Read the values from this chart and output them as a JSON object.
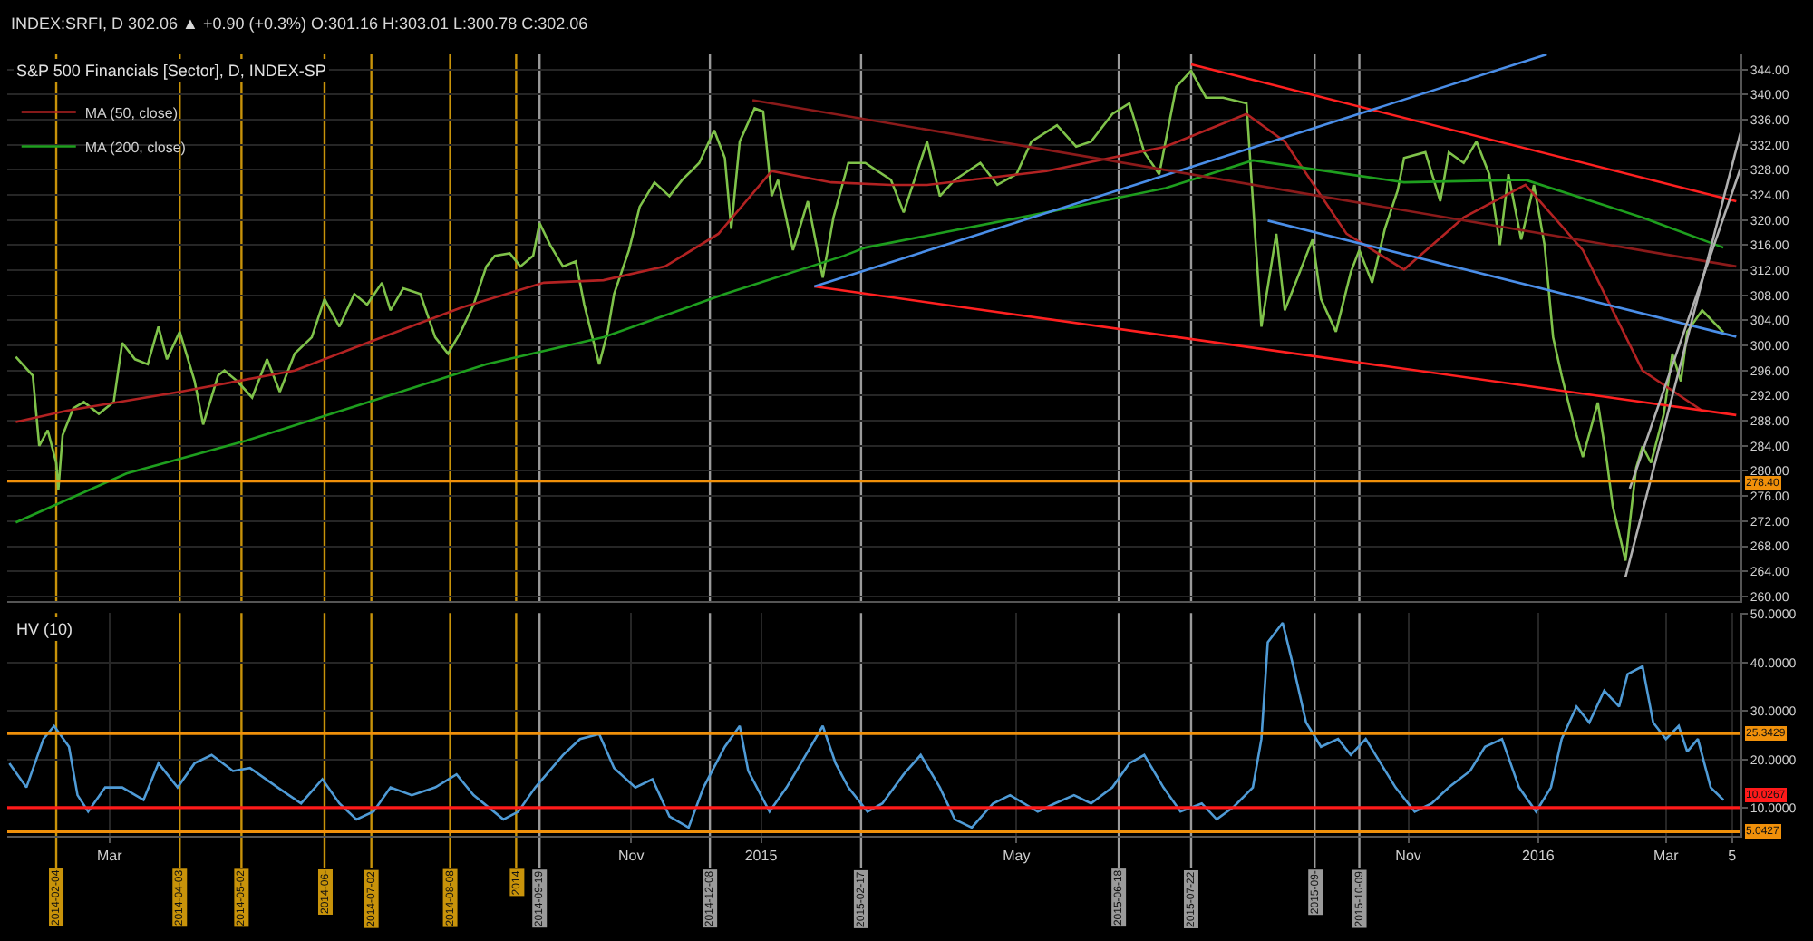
{
  "chart_data": [
    {
      "type": "line",
      "title": "S&P 500 Financials [Sector], D, INDEX-SP",
      "subtitle": "INDEX:SRFI, D 302.06 ▲ +0.90 (+0.3%) O:301.16 H:303.01 L:300.78 C:302.06",
      "xlim": [
        "2014-01-12",
        "2016-04-05"
      ],
      "ylim": [
        259.2,
        346.4
      ],
      "yticks": [
        {
          "value": 260,
          "label": "260.00"
        },
        {
          "value": 264,
          "label": "264.00"
        },
        {
          "value": 268,
          "label": "268.00"
        },
        {
          "value": 272,
          "label": "272.00"
        },
        {
          "value": 276,
          "label": "276.00"
        },
        {
          "value": 280,
          "label": "280.00"
        },
        {
          "value": 284,
          "label": "284.00"
        },
        {
          "value": 288,
          "label": "288.00"
        },
        {
          "value": 292,
          "label": "292.00"
        },
        {
          "value": 296,
          "label": "296.00"
        },
        {
          "value": 300,
          "label": "300.00"
        },
        {
          "value": 304,
          "label": "304.00"
        },
        {
          "value": 308,
          "label": "308.00"
        },
        {
          "value": 312,
          "label": "312.00"
        },
        {
          "value": 316,
          "label": "316.00"
        },
        {
          "value": 320,
          "label": "320.00"
        },
        {
          "value": 324,
          "label": "324.00"
        },
        {
          "value": 328,
          "label": "328.00"
        },
        {
          "value": 332,
          "label": "332.00"
        },
        {
          "value": 336,
          "label": "336.00"
        },
        {
          "value": 340,
          "label": "340.00"
        },
        {
          "value": 344,
          "label": "344.00"
        }
      ],
      "tick_labels": "y",
      "grid": true,
      "legend": "top left",
      "series": [
        {
          "color": "#7fc24a",
          "x": [
            "2014-01-16",
            "2014-01-24",
            "2014-01-27",
            "2014-01-31",
            "2014-02-04",
            "2014-02-05",
            "2014-02-07",
            "2014-02-12",
            "2014-02-17",
            "2014-02-24",
            "2014-03-03",
            "2014-03-07",
            "2014-03-13",
            "2014-03-19",
            "2014-03-24",
            "2014-03-28",
            "2014-04-03",
            "2014-04-10",
            "2014-04-14",
            "2014-04-21",
            "2014-04-24",
            "2014-04-30",
            "2014-05-07",
            "2014-05-14",
            "2014-05-20",
            "2014-05-27",
            "2014-06-04",
            "2014-06-10",
            "2014-06-17",
            "2014-06-24",
            "2014-06-30",
            "2014-07-07",
            "2014-07-11",
            "2014-07-17",
            "2014-07-25",
            "2014-08-01",
            "2014-08-07",
            "2014-08-13",
            "2014-08-19",
            "2014-08-25",
            "2014-08-29",
            "2014-09-05",
            "2014-09-10",
            "2014-09-16",
            "2014-09-19",
            "2014-09-24",
            "2014-09-30",
            "2014-10-06",
            "2014-10-10",
            "2014-10-17",
            "2014-10-21",
            "2014-10-24",
            "2014-10-31",
            "2014-11-05",
            "2014-11-12",
            "2014-11-19",
            "2014-11-25",
            "2014-12-03",
            "2014-12-10",
            "2014-12-15",
            "2014-12-18",
            "2014-12-22",
            "2014-12-29",
            "2015-01-02",
            "2015-01-06",
            "2015-01-09",
            "2015-01-16",
            "2015-01-23",
            "2015-01-30",
            "2015-02-04",
            "2015-02-11",
            "2015-02-19",
            "2015-03-03",
            "2015-03-09",
            "2015-03-20",
            "2015-03-26",
            "2015-04-02",
            "2015-04-14",
            "2015-04-22",
            "2015-05-01",
            "2015-05-08",
            "2015-05-20",
            "2015-05-29",
            "2015-06-05",
            "2015-06-15",
            "2015-06-23",
            "2015-06-30",
            "2015-07-07",
            "2015-07-15",
            "2015-07-22",
            "2015-07-29",
            "2015-08-06",
            "2015-08-17",
            "2015-08-21",
            "2015-08-24",
            "2015-08-31",
            "2015-09-04",
            "2015-09-10",
            "2015-09-17",
            "2015-09-21",
            "2015-09-28",
            "2015-10-05",
            "2015-10-09",
            "2015-10-15",
            "2015-10-21",
            "2015-10-27",
            "2015-10-30",
            "2015-11-09",
            "2015-11-16",
            "2015-11-20",
            "2015-11-27",
            "2015-12-03",
            "2015-12-09",
            "2015-12-14",
            "2015-12-18",
            "2015-12-24",
            "2015-12-30",
            "2016-01-04",
            "2016-01-08",
            "2016-01-12",
            "2016-01-19",
            "2016-01-22",
            "2016-01-29",
            "2016-02-02",
            "2016-02-05",
            "2016-02-11",
            "2016-02-16",
            "2016-02-19",
            "2016-02-23",
            "2016-02-29",
            "2016-03-04",
            "2016-03-08",
            "2016-03-11",
            "2016-03-18",
            "2016-03-28"
          ],
          "values": [
            298.2,
            295.2,
            284,
            286.5,
            281.3,
            277,
            285.7,
            290,
            291,
            289.1,
            291,
            300.4,
            297.8,
            297,
            303,
            297.8,
            302.2,
            294.3,
            287.4,
            295.2,
            296,
            294.3,
            291.7,
            297.8,
            292.6,
            298.7,
            301.3,
            307.4,
            303,
            308.2,
            306.5,
            310,
            305.6,
            309.1,
            308.2,
            301.3,
            298.7,
            302.2,
            306.5,
            312.6,
            314.3,
            314.7,
            312.6,
            314.3,
            319.5,
            316,
            312.6,
            313.4,
            306.5,
            297,
            302.2,
            308.2,
            315.2,
            322.1,
            326,
            323.8,
            326.4,
            329.1,
            334.3,
            329.9,
            318.6,
            332.5,
            337.8,
            337.3,
            323.8,
            326.4,
            315.2,
            323,
            310.8,
            320.4,
            329.1,
            329.1,
            326.4,
            321.2,
            332.5,
            323.8,
            326.4,
            329.1,
            325.6,
            327.3,
            332.5,
            335.1,
            331.7,
            332.5,
            336.9,
            338.6,
            330.8,
            327.3,
            341.2,
            343.8,
            339.5,
            339.5,
            338.6,
            317.8,
            303,
            317.8,
            305.6,
            310.8,
            316.9,
            307.4,
            302.2,
            311.7,
            315.2,
            310,
            318.6,
            324.7,
            329.9,
            330.8,
            323,
            330.8,
            329.1,
            332.5,
            327.3,
            316,
            327.3,
            316.9,
            325.6,
            316,
            301.3,
            295.2,
            285.7,
            282.2,
            290.9,
            282.2,
            274.4,
            265.7,
            280.5,
            283.9,
            281.3,
            289.1,
            298.7,
            294.3,
            302.2,
            305.6,
            302.1
          ]
        },
        {
          "name": "MA (50, close)",
          "color": "#b22222",
          "x": [
            "2014-01-16",
            "2014-02-09",
            "2014-04-03",
            "2014-05-27",
            "2014-06-30",
            "2014-08-13",
            "2014-09-21",
            "2014-10-19",
            "2014-11-17",
            "2014-12-12",
            "2015-01-06",
            "2015-02-03",
            "2015-03-03",
            "2015-03-20",
            "2015-05-15",
            "2015-07-10",
            "2015-08-17",
            "2015-09-04",
            "2015-10-03",
            "2015-10-30",
            "2015-11-27",
            "2015-12-26",
            "2016-01-22",
            "2016-02-19",
            "2016-03-18"
          ],
          "values": [
            287.8,
            289.6,
            292.6,
            296,
            300.4,
            306,
            310,
            310.4,
            312.6,
            317.8,
            327.8,
            326,
            325.6,
            325.6,
            327.8,
            331.7,
            336.9,
            332.5,
            317.8,
            312.1,
            320.4,
            325.6,
            315.2,
            296,
            289.6
          ]
        },
        {
          "name": "MA (200, close)",
          "color": "#1e9e1e",
          "x": [
            "2014-01-16",
            "2014-03-09",
            "2014-05-04",
            "2014-06-30",
            "2014-08-25",
            "2014-10-19",
            "2014-12-15",
            "2015-02-09",
            "2015-02-19",
            "2015-05-15",
            "2015-07-10",
            "2015-08-20",
            "2015-10-30",
            "2015-12-26",
            "2016-02-19",
            "2016-03-28"
          ],
          "values": [
            271.8,
            279.6,
            284.8,
            290.9,
            297,
            301.3,
            308.2,
            314.3,
            315.6,
            321.2,
            325.1,
            329.5,
            326,
            326.4,
            320.4,
            315.6
          ]
        },
        {
          "color": "#ff2020",
          "x": [
            "2015-07-22",
            "2016-04-03"
          ],
          "values": [
            344.8,
            323
          ]
        },
        {
          "color": "#ff2020",
          "x": [
            "2015-01-26",
            "2016-04-03"
          ],
          "values": [
            309.4,
            288.9
          ]
        },
        {
          "color": "#4a8ee8",
          "x": [
            "2015-01-26",
            "2016-01-05"
          ],
          "values": [
            309.4,
            346.4
          ]
        },
        {
          "color": "#4a8ee8",
          "x": [
            "2015-08-27",
            "2016-04-03"
          ],
          "values": [
            319.9,
            301.4
          ]
        },
        {
          "color": "#8b1a1a",
          "x": [
            "2014-12-28",
            "2016-04-03"
          ],
          "values": [
            339.1,
            312.6
          ]
        },
        {
          "color": "#b0b0b0",
          "x": [
            "2016-02-11",
            "2016-04-05"
          ],
          "values": [
            263.1,
            333.9
          ]
        },
        {
          "color": "#b0b0b0",
          "x": [
            "2016-02-13",
            "2016-04-05"
          ],
          "values": [
            277.2,
            328.2
          ]
        }
      ],
      "ref_lines": [
        {
          "axis": "y",
          "value": 278.4,
          "label": "278.40",
          "color": "#f0900a"
        },
        {
          "axis": "x",
          "value": "2014-02-04",
          "color": "#c8930a"
        },
        {
          "axis": "x",
          "value": "2014-04-03",
          "color": "#c8930a"
        },
        {
          "axis": "x",
          "value": "2014-05-02",
          "color": "#c8930a"
        },
        {
          "axis": "x",
          "value": "2014-06-10",
          "color": "#c8930a"
        },
        {
          "axis": "x",
          "value": "2014-07-02",
          "color": "#c8930a"
        },
        {
          "axis": "x",
          "value": "2014-08-08",
          "color": "#c8930a"
        },
        {
          "axis": "x",
          "value": "2014-09-08",
          "color": "#c8930a"
        },
        {
          "axis": "x",
          "value": "2014-09-19",
          "color": "#9a9a9a"
        },
        {
          "axis": "x",
          "value": "2014-12-08",
          "color": "#9a9a9a"
        },
        {
          "axis": "x",
          "value": "2015-02-17",
          "color": "#9a9a9a"
        },
        {
          "axis": "x",
          "value": "2015-06-18",
          "color": "#9a9a9a"
        },
        {
          "axis": "x",
          "value": "2015-07-22",
          "color": "#9a9a9a"
        },
        {
          "axis": "x",
          "value": "2015-09-18",
          "color": "#9a9a9a"
        },
        {
          "axis": "x",
          "value": "2015-10-09",
          "color": "#9a9a9a"
        }
      ]
    },
    {
      "type": "line",
      "title": "HV (10)",
      "xlim": [
        "2014-01-12",
        "2016-04-05"
      ],
      "ylim": [
        4.2,
        50.2
      ],
      "yticks": [
        {
          "value": 10,
          "label": "10.0000"
        },
        {
          "value": 20,
          "label": "20.0000"
        },
        {
          "value": 30,
          "label": "30.0000"
        },
        {
          "value": 40,
          "label": "40.0000"
        },
        {
          "value": 50,
          "label": "50.0000"
        }
      ],
      "xticks": [
        {
          "value": "2014-03-01",
          "label": "Mar"
        },
        {
          "value": "2014-11-01",
          "label": "Nov"
        },
        {
          "value": "2015-01-01",
          "label": "2015"
        },
        {
          "value": "2015-05-01",
          "label": "May"
        },
        {
          "value": "2015-11-01",
          "label": "Nov"
        },
        {
          "value": "2016-01-01",
          "label": "2016"
        },
        {
          "value": "2016-03-01",
          "label": "Mar"
        },
        {
          "value": "2016-04-01",
          "label": "5"
        }
      ],
      "grid": true,
      "series": [
        {
          "color": "#4f9bd6",
          "x": [
            "2014-01-13",
            "2014-01-21",
            "2014-01-29",
            "2014-02-03",
            "2014-02-10",
            "2014-02-14",
            "2014-02-19",
            "2014-02-27",
            "2014-03-07",
            "2014-03-17",
            "2014-03-24",
            "2014-04-02",
            "2014-04-10",
            "2014-04-18",
            "2014-04-28",
            "2014-05-06",
            "2014-05-19",
            "2014-05-30",
            "2014-06-09",
            "2014-06-17",
            "2014-06-25",
            "2014-07-03",
            "2014-07-11",
            "2014-07-21",
            "2014-08-01",
            "2014-08-11",
            "2014-08-19",
            "2014-09-02",
            "2014-09-09",
            "2014-09-17",
            "2014-09-30",
            "2014-10-08",
            "2014-10-17",
            "2014-10-24",
            "2014-11-03",
            "2014-11-11",
            "2014-11-19",
            "2014-11-28",
            "2014-12-05",
            "2014-12-15",
            "2014-12-22",
            "2014-12-26",
            "2015-01-05",
            "2015-01-13",
            "2015-01-22",
            "2015-01-30",
            "2015-02-05",
            "2015-02-11",
            "2015-02-20",
            "2015-02-27",
            "2015-03-09",
            "2015-03-17",
            "2015-03-26",
            "2015-04-02",
            "2015-04-10",
            "2015-04-20",
            "2015-04-28",
            "2015-05-11",
            "2015-05-19",
            "2015-05-28",
            "2015-06-05",
            "2015-06-15",
            "2015-06-23",
            "2015-06-30",
            "2015-07-09",
            "2015-07-17",
            "2015-07-27",
            "2015-08-03",
            "2015-08-11",
            "2015-08-20",
            "2015-08-24",
            "2015-08-27",
            "2015-09-03",
            "2015-09-08",
            "2015-09-14",
            "2015-09-21",
            "2015-09-29",
            "2015-10-05",
            "2015-10-12",
            "2015-10-19",
            "2015-10-26",
            "2015-11-04",
            "2015-11-12",
            "2015-11-20",
            "2015-11-30",
            "2015-12-07",
            "2015-12-15",
            "2015-12-23",
            "2015-12-31",
            "2016-01-07",
            "2016-01-12",
            "2016-01-19",
            "2016-01-25",
            "2016-02-01",
            "2016-02-08",
            "2016-02-12",
            "2016-02-19",
            "2016-02-24",
            "2016-03-01",
            "2016-03-07",
            "2016-03-11",
            "2016-03-16",
            "2016-03-22",
            "2016-03-28"
          ],
          "values": [
            19.2,
            14.2,
            24.2,
            26.9,
            22.6,
            12.6,
            9.2,
            14.2,
            14.2,
            11.6,
            19.2,
            14.2,
            19.2,
            20.9,
            17.6,
            18.2,
            14.2,
            10.9,
            15.9,
            10.9,
            7.6,
            9.2,
            14.2,
            12.6,
            14.2,
            16.9,
            12.6,
            7.6,
            9.2,
            14.2,
            20.9,
            24.2,
            25.2,
            18.2,
            14.2,
            15.9,
            8.2,
            5.9,
            14.2,
            22.6,
            26.9,
            17.6,
            9.2,
            14.2,
            20.9,
            26.9,
            19.2,
            14.2,
            9.2,
            10.9,
            16.9,
            20.9,
            14.2,
            7.6,
            5.9,
            10.9,
            12.6,
            9.2,
            10.9,
            12.6,
            10.9,
            14.2,
            19.2,
            20.9,
            14.2,
            9.2,
            10.9,
            7.6,
            10.2,
            14.2,
            24.2,
            44.2,
            48.2,
            39.2,
            27.6,
            22.6,
            24.2,
            20.9,
            24.2,
            19.2,
            14.2,
            9.2,
            10.9,
            14.2,
            17.6,
            22.6,
            24.2,
            14.2,
            9.2,
            14.2,
            24.2,
            30.9,
            27.6,
            34.2,
            30.9,
            37.6,
            39.2,
            27.6,
            24.2,
            26.9,
            21.6,
            24.2,
            14.2,
            11.6
          ]
        }
      ],
      "ref_lines": [
        {
          "axis": "y",
          "value": 25.3429,
          "label": "25.3429",
          "color": "#f0900a"
        },
        {
          "axis": "y",
          "value": 10.0267,
          "label": "10.0267",
          "color": "#ff1a1a"
        },
        {
          "axis": "y",
          "value": 5.0427,
          "label": "5.0427",
          "color": "#f0900a"
        },
        {
          "axis": "x",
          "value": "2014-02-04",
          "label": "2014-02-04",
          "color": "#c8930a"
        },
        {
          "axis": "x",
          "value": "2014-04-03",
          "label": "2014-04-03",
          "color": "#c8930a"
        },
        {
          "axis": "x",
          "value": "2014-05-02",
          "label": "2014-05-02",
          "color": "#c8930a"
        },
        {
          "axis": "x",
          "value": "2014-06-10",
          "label": "2014-06-",
          "color": "#c8930a"
        },
        {
          "axis": "x",
          "value": "2014-07-02",
          "label": "2014-07-02",
          "color": "#c8930a"
        },
        {
          "axis": "x",
          "value": "2014-08-08",
          "label": "2014-08-08",
          "color": "#c8930a"
        },
        {
          "axis": "x",
          "value": "2014-09-08",
          "label": "2014",
          "color": "#c8930a"
        },
        {
          "axis": "x",
          "value": "2014-09-19",
          "label": "2014-09-19",
          "color": "#9a9a9a"
        },
        {
          "axis": "x",
          "value": "2014-12-08",
          "label": "2014-12-08",
          "color": "#9a9a9a"
        },
        {
          "axis": "x",
          "value": "2015-02-17",
          "label": "2015-02-17",
          "color": "#9a9a9a"
        },
        {
          "axis": "x",
          "value": "2015-06-18",
          "label": "2015-06-18",
          "color": "#9a9a9a"
        },
        {
          "axis": "x",
          "value": "2015-07-22",
          "label": "2015-07-22",
          "color": "#9a9a9a"
        },
        {
          "axis": "x",
          "value": "2015-09-18",
          "label": "2015-09-",
          "color": "#9a9a9a"
        },
        {
          "axis": "x",
          "value": "2015-10-09",
          "label": "2015-10-09",
          "color": "#9a9a9a"
        }
      ]
    }
  ]
}
